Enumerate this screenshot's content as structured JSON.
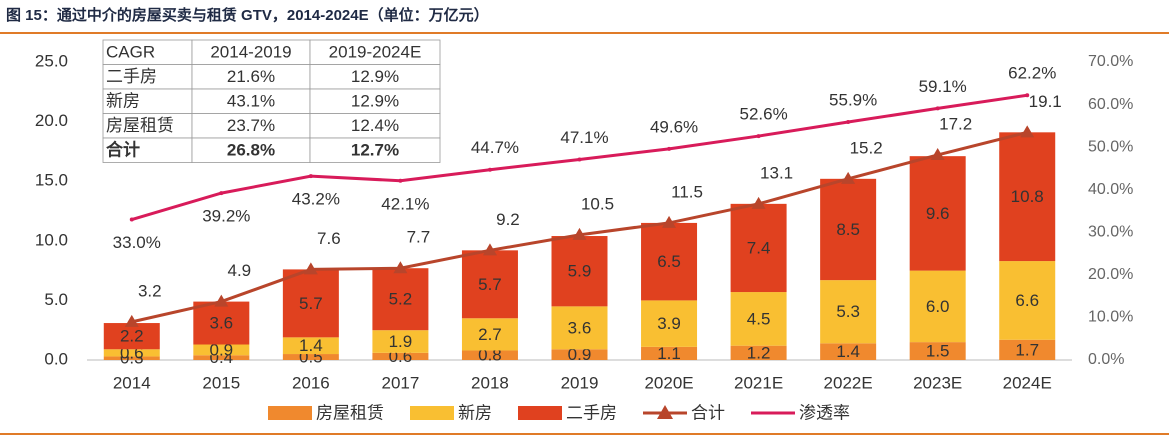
{
  "chart_data": {
    "type": "bar",
    "title": "图 15：通过中介的房屋买卖与租赁 GTV，2014-2024E（单位：万亿元）",
    "categories": [
      "2014",
      "2015",
      "2016",
      "2017",
      "2018",
      "2019",
      "2020E",
      "2021E",
      "2022E",
      "2023E",
      "2024E"
    ],
    "series": [
      {
        "name": "房屋租赁",
        "type": "bar",
        "color": "#f0892e",
        "values": [
          0.3,
          0.4,
          0.5,
          0.6,
          0.8,
          0.9,
          1.1,
          1.2,
          1.4,
          1.5,
          1.7
        ],
        "value_labels": [
          "0.3",
          "0.4",
          "0.5",
          "0.6",
          "0.8",
          "0.9",
          "1.1",
          "1.2",
          "1.4",
          "1.5",
          "1.7"
        ]
      },
      {
        "name": "新房",
        "type": "bar",
        "color": "#f9bf32",
        "values": [
          0.6,
          0.9,
          1.4,
          1.9,
          2.7,
          3.6,
          3.9,
          4.5,
          5.3,
          6.0,
          6.6
        ],
        "value_labels": [
          "0.6",
          "0.9",
          "1.4",
          "1.9",
          "2.7",
          "3.6",
          "3.9",
          "4.5",
          "5.3",
          "6.0",
          "6.6"
        ]
      },
      {
        "name": "二手房",
        "type": "bar",
        "color": "#e0411f",
        "values": [
          2.2,
          3.6,
          5.7,
          5.2,
          5.7,
          5.9,
          6.5,
          7.4,
          8.5,
          9.6,
          10.8
        ],
        "value_labels": [
          "2.2",
          "3.6",
          "5.7",
          "5.2",
          "5.7",
          "5.9",
          "6.5",
          "7.4",
          "8.5",
          "9.6",
          "10.8"
        ]
      },
      {
        "name": "合计",
        "type": "line",
        "marker": "triangle",
        "color": "#b8452b",
        "values": [
          3.2,
          4.9,
          7.6,
          7.7,
          9.2,
          10.5,
          11.5,
          13.1,
          15.2,
          17.2,
          19.1
        ],
        "value_labels": [
          "3.2",
          "4.9",
          "7.6",
          "7.7",
          "9.2",
          "10.5",
          "11.5",
          "13.1",
          "15.2",
          "17.2",
          "19.1"
        ]
      },
      {
        "name": "渗透率",
        "type": "line",
        "axis": "y2",
        "color": "#d81b5a",
        "values": [
          33.0,
          39.2,
          43.2,
          42.1,
          44.7,
          47.1,
          49.6,
          52.6,
          55.9,
          59.1,
          62.2
        ],
        "value_labels": [
          "33.0%",
          "39.2%",
          "43.2%",
          "42.1%",
          "44.7%",
          "47.1%",
          "49.6%",
          "52.6%",
          "55.9%",
          "59.1%",
          "62.2%"
        ]
      }
    ],
    "ylim": [
      0,
      25
    ],
    "yticks": [
      {
        "value": 0,
        "label": "0.0"
      },
      {
        "value": 5,
        "label": "5.0"
      },
      {
        "value": 10,
        "label": "10.0"
      },
      {
        "value": 15,
        "label": "15.0"
      },
      {
        "value": 20,
        "label": "20.0"
      },
      {
        "value": 25,
        "label": "25.0"
      }
    ],
    "y2lim": [
      0,
      70
    ],
    "y2ticks": [
      {
        "value": 0,
        "label": "0.0%"
      },
      {
        "value": 10,
        "label": "10.0%"
      },
      {
        "value": 20,
        "label": "20.0%"
      },
      {
        "value": 30,
        "label": "30.0%"
      },
      {
        "value": 40,
        "label": "40.0%"
      },
      {
        "value": 50,
        "label": "50.0%"
      },
      {
        "value": 60,
        "label": "60.0%"
      },
      {
        "value": 70,
        "label": "70.0%"
      }
    ],
    "legend": "bottom"
  },
  "table": {
    "header": [
      "CAGR",
      "2014-2019",
      "2019-2024E"
    ],
    "rows": [
      [
        "二手房",
        "21.6%",
        "12.9%"
      ],
      [
        "新房",
        "43.1%",
        "12.9%"
      ],
      [
        "房屋租赁",
        "23.7%",
        "12.4%"
      ],
      [
        "合计",
        "26.8%",
        "12.7%"
      ]
    ]
  }
}
